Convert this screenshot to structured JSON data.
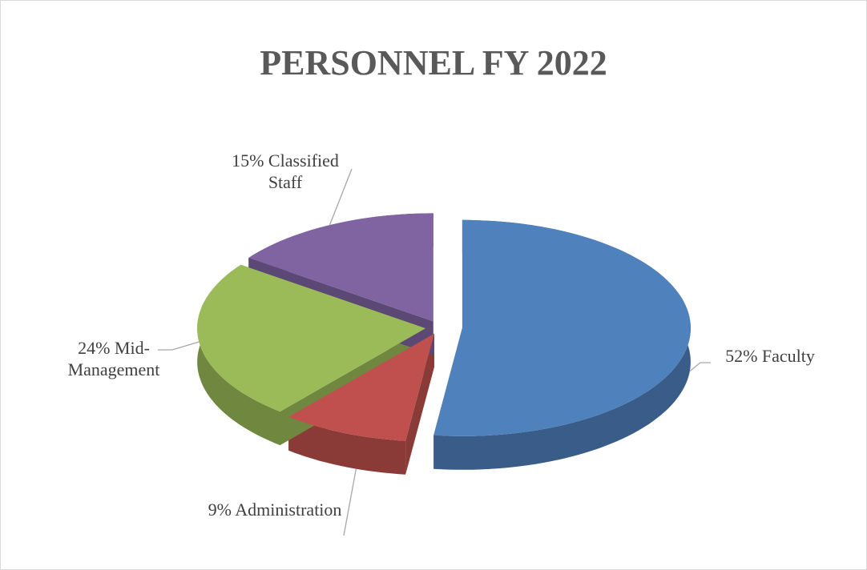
{
  "chart_data": {
    "type": "pie",
    "title": "PERSONNEL FY 2022",
    "categories": [
      "Faculty",
      "Administration",
      "Mid-Management",
      "Classified Staff"
    ],
    "values": [
      52,
      9,
      24,
      15
    ],
    "value_labels": [
      "52%",
      "9%",
      "24%",
      "15%"
    ],
    "colors": [
      "#4f81bd",
      "#c0504d",
      "#9bbb59",
      "#8064a2"
    ]
  }
}
